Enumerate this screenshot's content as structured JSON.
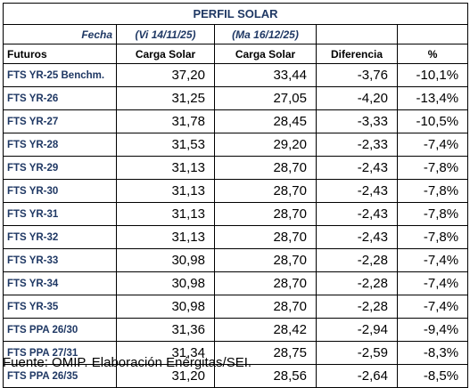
{
  "table": {
    "title": "PERFIL SOLAR",
    "date_row": {
      "label": "Fecha",
      "date1": "(Vi 14/11/25)",
      "date2": "(Ma 16/12/25)"
    },
    "headers": [
      "Futuros",
      "Carga Solar",
      "Carga Solar",
      "Diferencia",
      "%"
    ],
    "rows": [
      [
        "FTS YR-25 Benchm.",
        "37,20",
        "33,44",
        "-3,76",
        "-10,1%"
      ],
      [
        "FTS YR-26",
        "31,25",
        "27,05",
        "-4,20",
        "-13,4%"
      ],
      [
        "FTS YR-27",
        "31,78",
        "28,45",
        "-3,33",
        "-10,5%"
      ],
      [
        "FTS YR-28",
        "31,53",
        "29,20",
        "-2,33",
        "-7,4%"
      ],
      [
        "FTS YR-29",
        "31,13",
        "28,70",
        "-2,43",
        "-7,8%"
      ],
      [
        "FTS YR-30",
        "31,13",
        "28,70",
        "-2,43",
        "-7,8%"
      ],
      [
        "FTS YR-31",
        "31,13",
        "28,70",
        "-2,43",
        "-7,8%"
      ],
      [
        "FTS YR-32",
        "31,13",
        "28,70",
        "-2,43",
        "-7,8%"
      ],
      [
        "FTS YR-33",
        "30,98",
        "28,70",
        "-2,28",
        "-7,4%"
      ],
      [
        "FTS YR-34",
        "30,98",
        "28,70",
        "-2,28",
        "-7,4%"
      ],
      [
        "FTS YR-35",
        "30,98",
        "28,70",
        "-2,28",
        "-7,4%"
      ],
      [
        "FTS PPA 26/30",
        "31,36",
        "28,42",
        "-2,94",
        "-9,4%"
      ],
      [
        "FTS PPA 27/31",
        "31,34",
        "28,75",
        "-2,59",
        "-8,3%"
      ],
      [
        "FTS PPA 26/35",
        "31,20",
        "28,56",
        "-2,64",
        "-8,5%"
      ]
    ]
  },
  "footer": "Fuente: OMIP. Elaboración Enérgitas/SEI.",
  "colors": {
    "header_text": "#1f3864",
    "border": "#000000",
    "background": "#ffffff"
  }
}
